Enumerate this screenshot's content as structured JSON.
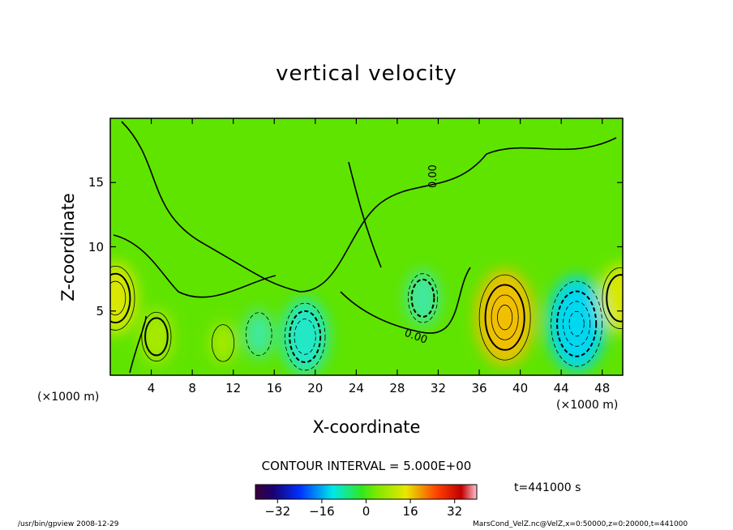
{
  "chart_data": {
    "type": "heatmap",
    "title": "vertical velocity",
    "xlabel": "X-coordinate",
    "ylabel": "Z-coordinate",
    "x_unit_label": "(×1000 m)",
    "xlim": [
      0,
      50
    ],
    "ylim": [
      0,
      20
    ],
    "x_ticks": [
      "4",
      "8",
      "12",
      "16",
      "20",
      "24",
      "28",
      "32",
      "36",
      "40",
      "44",
      "48"
    ],
    "y_ticks": [
      "5",
      "10",
      "15"
    ],
    "contour_interval_text": "CONTOUR INTERVAL = 5.000E+00",
    "contour_label": "0.00",
    "colorbar": {
      "range": [
        -40,
        40
      ],
      "ticks": [
        "−32",
        "−16",
        "0",
        "16",
        "32"
      ]
    },
    "time_label": "t=441000 s",
    "features": [
      {
        "x": 0.5,
        "z": 6.0,
        "value": 15
      },
      {
        "x": 4.5,
        "z": 3.0,
        "value": 10
      },
      {
        "x": 11.0,
        "z": 2.5,
        "value": 6
      },
      {
        "x": 19.0,
        "z": 3.0,
        "value": -16
      },
      {
        "x": 14.5,
        "z": 3.2,
        "value": -8
      },
      {
        "x": 30.5,
        "z": 6.0,
        "value": -10
      },
      {
        "x": 38.5,
        "z": 4.5,
        "value": 22
      },
      {
        "x": 45.5,
        "z": 4.0,
        "value": -22
      },
      {
        "x": 49.8,
        "z": 6.0,
        "value": 14
      }
    ],
    "grid": false
  },
  "footer": {
    "left": "/usr/bin/gpview  2008-12-29",
    "right": "MarsCond_VelZ.nc@VelZ,x=0:50000,z=0:20000,t=441000"
  },
  "colors": {
    "background": "#5fe400",
    "positive": "#ffd000",
    "negative": "#00e4e4"
  }
}
